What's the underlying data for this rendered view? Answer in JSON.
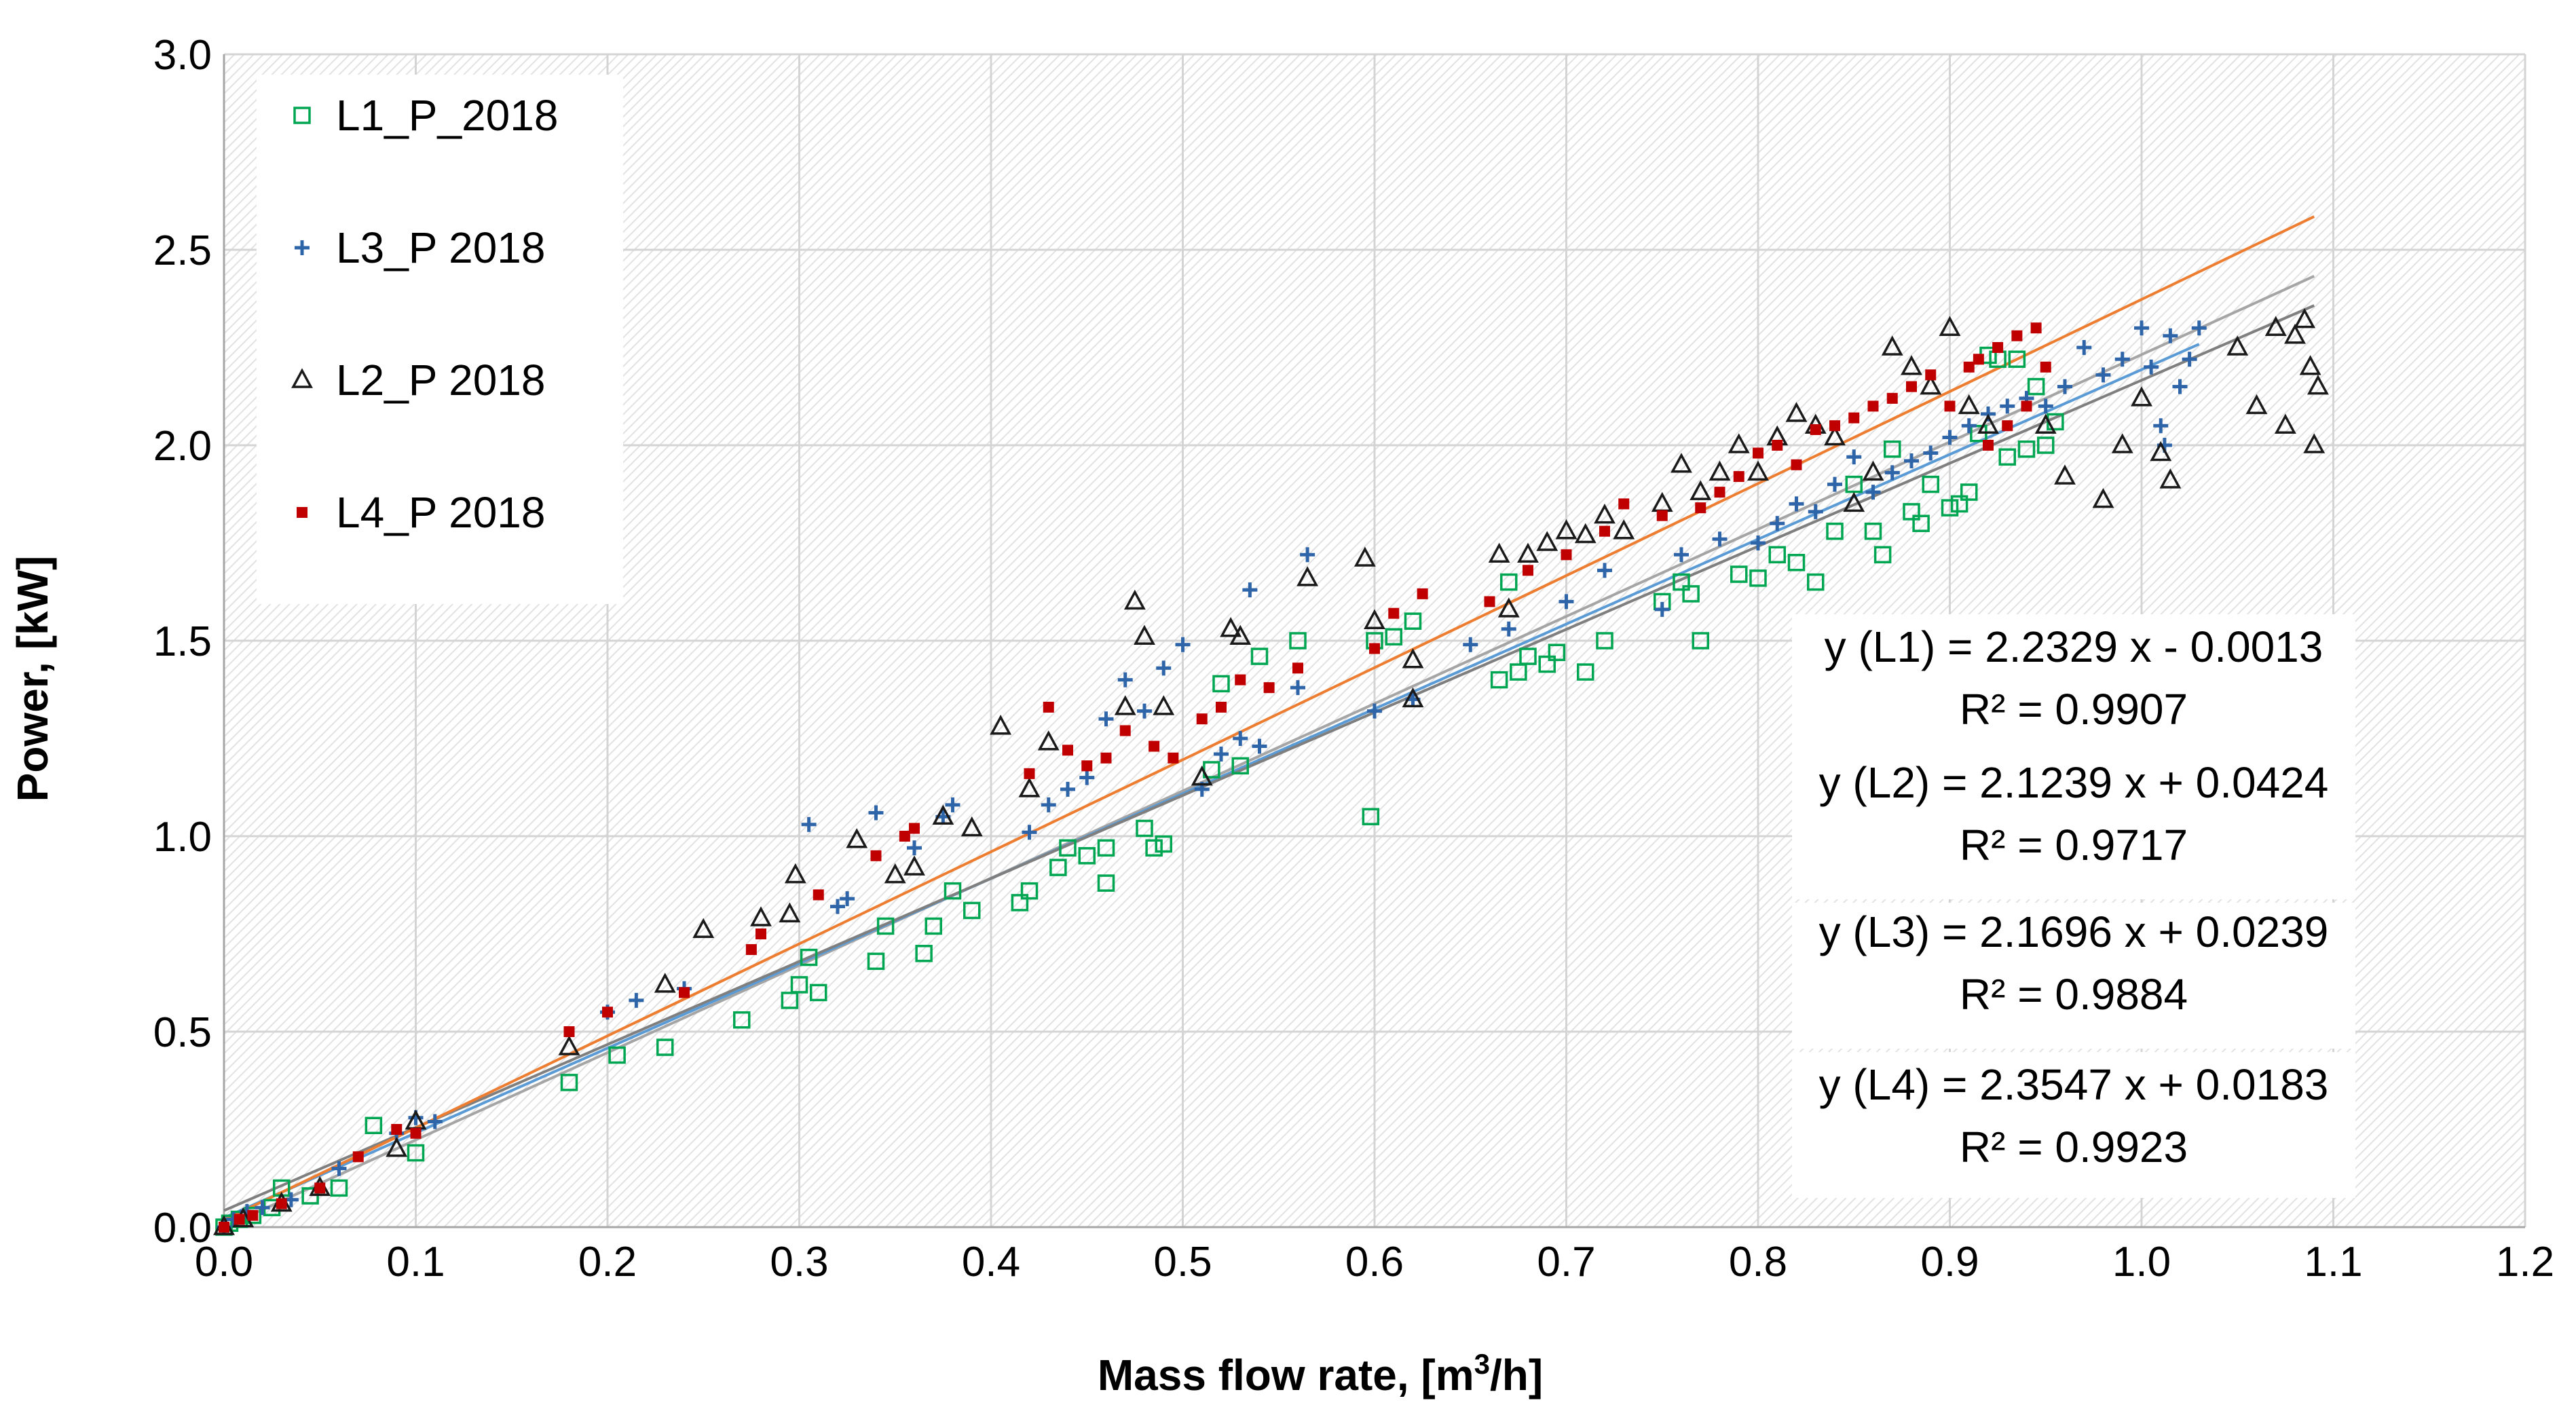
{
  "chart_data": {
    "type": "scatter",
    "xlabel": "Mass flow rate, [m",
    "xlabel_sup": "3",
    "xlabel_tail": "/h]",
    "ylabel": "Power, [kW]",
    "xlim": [
      0.0,
      1.2
    ],
    "ylim": [
      0.0,
      3.0
    ],
    "x_ticks": [
      "0.0",
      "0.1",
      "0.2",
      "0.3",
      "0.4",
      "0.5",
      "0.6",
      "0.7",
      "0.8",
      "0.9",
      "1.0",
      "1.1",
      "1.2"
    ],
    "y_ticks": [
      "0.0",
      "0.5",
      "1.0",
      "1.5",
      "2.0",
      "2.5",
      "3.0"
    ],
    "grid": true,
    "legend_position": "top-left",
    "series": [
      {
        "name": "L1_P_2018",
        "marker": "square-open",
        "color": "#00a651",
        "trend_color": "#a5a5a5",
        "slope": 2.2329,
        "intercept": -0.0013,
        "points": [
          [
            0,
            0
          ],
          [
            0.003,
            0.01
          ],
          [
            0.008,
            0.02
          ],
          [
            0.015,
            0.03
          ],
          [
            0.025,
            0.05
          ],
          [
            0.03,
            0.1
          ],
          [
            0.045,
            0.08
          ],
          [
            0.06,
            0.1
          ],
          [
            0.078,
            0.26
          ],
          [
            0.1,
            0.19
          ],
          [
            0.18,
            0.37
          ],
          [
            0.205,
            0.44
          ],
          [
            0.23,
            0.46
          ],
          [
            0.27,
            0.53
          ],
          [
            0.295,
            0.58
          ],
          [
            0.3,
            0.62
          ],
          [
            0.305,
            0.69
          ],
          [
            0.31,
            0.6
          ],
          [
            0.34,
            0.68
          ],
          [
            0.345,
            0.77
          ],
          [
            0.365,
            0.7
          ],
          [
            0.37,
            0.77
          ],
          [
            0.38,
            0.86
          ],
          [
            0.39,
            0.81
          ],
          [
            0.415,
            0.83
          ],
          [
            0.42,
            0.86
          ],
          [
            0.435,
            0.92
          ],
          [
            0.44,
            0.97
          ],
          [
            0.45,
            0.95
          ],
          [
            0.46,
            0.97
          ],
          [
            0.46,
            0.88
          ],
          [
            0.48,
            1.02
          ],
          [
            0.485,
            0.97
          ],
          [
            0.49,
            0.98
          ],
          [
            0.515,
            1.17
          ],
          [
            0.52,
            1.39
          ],
          [
            0.53,
            1.18
          ],
          [
            0.54,
            1.46
          ],
          [
            0.56,
            1.5
          ],
          [
            0.598,
            1.05
          ],
          [
            0.6,
            1.5
          ],
          [
            0.61,
            1.51
          ],
          [
            0.62,
            1.55
          ],
          [
            0.665,
            1.4
          ],
          [
            0.67,
            1.65
          ],
          [
            0.675,
            1.42
          ],
          [
            0.68,
            1.46
          ],
          [
            0.69,
            1.44
          ],
          [
            0.695,
            1.47
          ],
          [
            0.71,
            1.42
          ],
          [
            0.72,
            1.5
          ],
          [
            0.75,
            1.6
          ],
          [
            0.76,
            1.65
          ],
          [
            0.765,
            1.62
          ],
          [
            0.77,
            1.5
          ],
          [
            0.79,
            1.67
          ],
          [
            0.8,
            1.66
          ],
          [
            0.81,
            1.72
          ],
          [
            0.82,
            1.7
          ],
          [
            0.83,
            1.65
          ],
          [
            0.84,
            1.78
          ],
          [
            0.85,
            1.9
          ],
          [
            0.86,
            1.78
          ],
          [
            0.865,
            1.72
          ],
          [
            0.87,
            1.99
          ],
          [
            0.88,
            1.83
          ],
          [
            0.885,
            1.8
          ],
          [
            0.89,
            1.9
          ],
          [
            0.9,
            1.84
          ],
          [
            0.905,
            1.85
          ],
          [
            0.91,
            1.88
          ],
          [
            0.915,
            2.03
          ],
          [
            0.92,
            2.23
          ],
          [
            0.925,
            2.22
          ],
          [
            0.93,
            1.97
          ],
          [
            0.935,
            2.22
          ],
          [
            0.94,
            1.99
          ],
          [
            0.945,
            2.15
          ],
          [
            0.95,
            2.0
          ],
          [
            0.955,
            2.06
          ]
        ]
      },
      {
        "name": "L3_P 2018",
        "marker": "plus",
        "color": "#2e64a8",
        "trend_color": "#5b9bd5",
        "slope": 2.1696,
        "intercept": 0.0239,
        "points": [
          [
            0,
            0
          ],
          [
            0.005,
            0.02
          ],
          [
            0.012,
            0.04
          ],
          [
            0.02,
            0.05
          ],
          [
            0.035,
            0.07
          ],
          [
            0.06,
            0.15
          ],
          [
            0.09,
            0.24
          ],
          [
            0.1,
            0.28
          ],
          [
            0.11,
            0.27
          ],
          [
            0.2,
            0.55
          ],
          [
            0.215,
            0.58
          ],
          [
            0.24,
            0.61
          ],
          [
            0.305,
            1.03
          ],
          [
            0.32,
            0.82
          ],
          [
            0.325,
            0.84
          ],
          [
            0.34,
            1.06
          ],
          [
            0.36,
            0.97
          ],
          [
            0.375,
            1.05
          ],
          [
            0.38,
            1.08
          ],
          [
            0.42,
            1.01
          ],
          [
            0.43,
            1.08
          ],
          [
            0.44,
            1.12
          ],
          [
            0.45,
            1.15
          ],
          [
            0.46,
            1.3
          ],
          [
            0.47,
            1.4
          ],
          [
            0.48,
            1.32
          ],
          [
            0.49,
            1.43
          ],
          [
            0.5,
            1.49
          ],
          [
            0.51,
            1.12
          ],
          [
            0.52,
            1.21
          ],
          [
            0.53,
            1.25
          ],
          [
            0.535,
            1.63
          ],
          [
            0.54,
            1.23
          ],
          [
            0.56,
            1.38
          ],
          [
            0.565,
            1.72
          ],
          [
            0.6,
            1.32
          ],
          [
            0.62,
            1.35
          ],
          [
            0.65,
            1.49
          ],
          [
            0.67,
            1.53
          ],
          [
            0.7,
            1.6
          ],
          [
            0.72,
            1.68
          ],
          [
            0.75,
            1.58
          ],
          [
            0.76,
            1.72
          ],
          [
            0.78,
            1.76
          ],
          [
            0.8,
            1.75
          ],
          [
            0.81,
            1.8
          ],
          [
            0.82,
            1.85
          ],
          [
            0.83,
            1.83
          ],
          [
            0.84,
            1.9
          ],
          [
            0.85,
            1.97
          ],
          [
            0.86,
            1.88
          ],
          [
            0.87,
            1.93
          ],
          [
            0.88,
            1.96
          ],
          [
            0.89,
            1.98
          ],
          [
            0.9,
            2.02
          ],
          [
            0.91,
            2.05
          ],
          [
            0.92,
            2.08
          ],
          [
            0.93,
            2.1
          ],
          [
            0.94,
            2.12
          ],
          [
            0.95,
            2.1
          ],
          [
            0.96,
            2.15
          ],
          [
            0.97,
            2.25
          ],
          [
            0.98,
            2.18
          ],
          [
            0.99,
            2.22
          ],
          [
            1.0,
            2.3
          ],
          [
            1.005,
            2.2
          ],
          [
            1.01,
            2.05
          ],
          [
            1.012,
            2.0
          ],
          [
            1.015,
            2.28
          ],
          [
            1.02,
            2.15
          ],
          [
            1.025,
            2.22
          ],
          [
            1.03,
            2.3
          ]
        ]
      },
      {
        "name": "L2_P 2018",
        "marker": "triangle-open",
        "color": "#1a1a1a",
        "trend_color": "#7f7f7f",
        "slope": 2.1239,
        "intercept": 0.0424,
        "points": [
          [
            0,
            0
          ],
          [
            0.01,
            0.02
          ],
          [
            0.03,
            0.06
          ],
          [
            0.05,
            0.1
          ],
          [
            0.09,
            0.2
          ],
          [
            0.1,
            0.27
          ],
          [
            0.18,
            0.46
          ],
          [
            0.23,
            0.62
          ],
          [
            0.25,
            0.76
          ],
          [
            0.28,
            0.79
          ],
          [
            0.295,
            0.8
          ],
          [
            0.298,
            0.9
          ],
          [
            0.33,
            0.99
          ],
          [
            0.35,
            0.9
          ],
          [
            0.36,
            0.92
          ],
          [
            0.375,
            1.05
          ],
          [
            0.39,
            1.02
          ],
          [
            0.405,
            1.28
          ],
          [
            0.42,
            1.12
          ],
          [
            0.43,
            1.24
          ],
          [
            0.47,
            1.33
          ],
          [
            0.475,
            1.6
          ],
          [
            0.48,
            1.51
          ],
          [
            0.49,
            1.33
          ],
          [
            0.51,
            1.15
          ],
          [
            0.525,
            1.53
          ],
          [
            0.53,
            1.51
          ],
          [
            0.565,
            1.66
          ],
          [
            0.595,
            1.71
          ],
          [
            0.6,
            1.55
          ],
          [
            0.62,
            1.45
          ],
          [
            0.62,
            1.35
          ],
          [
            0.665,
            1.72
          ],
          [
            0.67,
            1.58
          ],
          [
            0.68,
            1.72
          ],
          [
            0.69,
            1.75
          ],
          [
            0.7,
            1.78
          ],
          [
            0.71,
            1.77
          ],
          [
            0.72,
            1.82
          ],
          [
            0.73,
            1.78
          ],
          [
            0.75,
            1.85
          ],
          [
            0.76,
            1.95
          ],
          [
            0.77,
            1.88
          ],
          [
            0.78,
            1.93
          ],
          [
            0.79,
            2.0
          ],
          [
            0.8,
            1.93
          ],
          [
            0.81,
            2.02
          ],
          [
            0.82,
            2.08
          ],
          [
            0.83,
            2.05
          ],
          [
            0.84,
            2.02
          ],
          [
            0.85,
            1.85
          ],
          [
            0.86,
            1.93
          ],
          [
            0.87,
            2.25
          ],
          [
            0.88,
            2.2
          ],
          [
            0.89,
            2.15
          ],
          [
            0.9,
            2.3
          ],
          [
            0.91,
            2.1
          ],
          [
            0.92,
            2.05
          ],
          [
            0.95,
            2.05
          ],
          [
            0.96,
            1.92
          ],
          [
            0.98,
            1.86
          ],
          [
            0.99,
            2.0
          ],
          [
            1.0,
            2.12
          ],
          [
            1.01,
            1.98
          ],
          [
            1.015,
            1.91
          ],
          [
            1.05,
            2.25
          ],
          [
            1.06,
            2.1
          ],
          [
            1.07,
            2.3
          ],
          [
            1.075,
            2.05
          ],
          [
            1.08,
            2.28
          ],
          [
            1.085,
            2.32
          ],
          [
            1.088,
            2.2
          ],
          [
            1.09,
            2.0
          ],
          [
            1.092,
            2.15
          ]
        ]
      },
      {
        "name": "L4_P  2018",
        "marker": "square-filled",
        "color": "#c00000",
        "trend_color": "#ed7d31",
        "slope": 2.3547,
        "intercept": 0.0183,
        "points": [
          [
            0,
            0
          ],
          [
            0.008,
            0.02
          ],
          [
            0.015,
            0.03
          ],
          [
            0.03,
            0.06
          ],
          [
            0.05,
            0.1
          ],
          [
            0.07,
            0.18
          ],
          [
            0.09,
            0.25
          ],
          [
            0.1,
            0.24
          ],
          [
            0.18,
            0.5
          ],
          [
            0.2,
            0.55
          ],
          [
            0.24,
            0.6
          ],
          [
            0.275,
            0.71
          ],
          [
            0.28,
            0.75
          ],
          [
            0.31,
            0.85
          ],
          [
            0.34,
            0.95
          ],
          [
            0.355,
            1.0
          ],
          [
            0.36,
            1.02
          ],
          [
            0.42,
            1.16
          ],
          [
            0.43,
            1.33
          ],
          [
            0.44,
            1.22
          ],
          [
            0.45,
            1.18
          ],
          [
            0.46,
            1.2
          ],
          [
            0.47,
            1.27
          ],
          [
            0.485,
            1.23
          ],
          [
            0.495,
            1.2
          ],
          [
            0.51,
            1.3
          ],
          [
            0.52,
            1.33
          ],
          [
            0.53,
            1.4
          ],
          [
            0.545,
            1.38
          ],
          [
            0.56,
            1.43
          ],
          [
            0.6,
            1.48
          ],
          [
            0.61,
            1.57
          ],
          [
            0.625,
            1.62
          ],
          [
            0.66,
            1.6
          ],
          [
            0.68,
            1.68
          ],
          [
            0.7,
            1.72
          ],
          [
            0.72,
            1.78
          ],
          [
            0.73,
            1.85
          ],
          [
            0.75,
            1.82
          ],
          [
            0.77,
            1.84
          ],
          [
            0.78,
            1.88
          ],
          [
            0.79,
            1.92
          ],
          [
            0.8,
            1.98
          ],
          [
            0.81,
            2.0
          ],
          [
            0.82,
            1.95
          ],
          [
            0.83,
            2.04
          ],
          [
            0.84,
            2.05
          ],
          [
            0.85,
            2.07
          ],
          [
            0.86,
            2.1
          ],
          [
            0.87,
            2.12
          ],
          [
            0.88,
            2.15
          ],
          [
            0.89,
            2.18
          ],
          [
            0.9,
            2.1
          ],
          [
            0.91,
            2.2
          ],
          [
            0.915,
            2.22
          ],
          [
            0.92,
            2.0
          ],
          [
            0.925,
            2.25
          ],
          [
            0.93,
            2.05
          ],
          [
            0.935,
            2.28
          ],
          [
            0.94,
            2.1
          ],
          [
            0.945,
            2.3
          ],
          [
            0.95,
            2.2
          ]
        ]
      }
    ],
    "equations": [
      {
        "eq": "y (L1) = 2.2329 x - 0.0013",
        "r2": "R² = 0.9907"
      },
      {
        "eq": "y (L2) = 2.1239 x + 0.0424",
        "r2": "R² = 0.9717"
      },
      {
        "eq": "y (L3) = 2.1696 x + 0.0239",
        "r2": "R² = 0.9884"
      },
      {
        "eq": "y (L4) = 2.3547 x + 0.0183",
        "r2": "R² = 0.9923"
      }
    ]
  }
}
